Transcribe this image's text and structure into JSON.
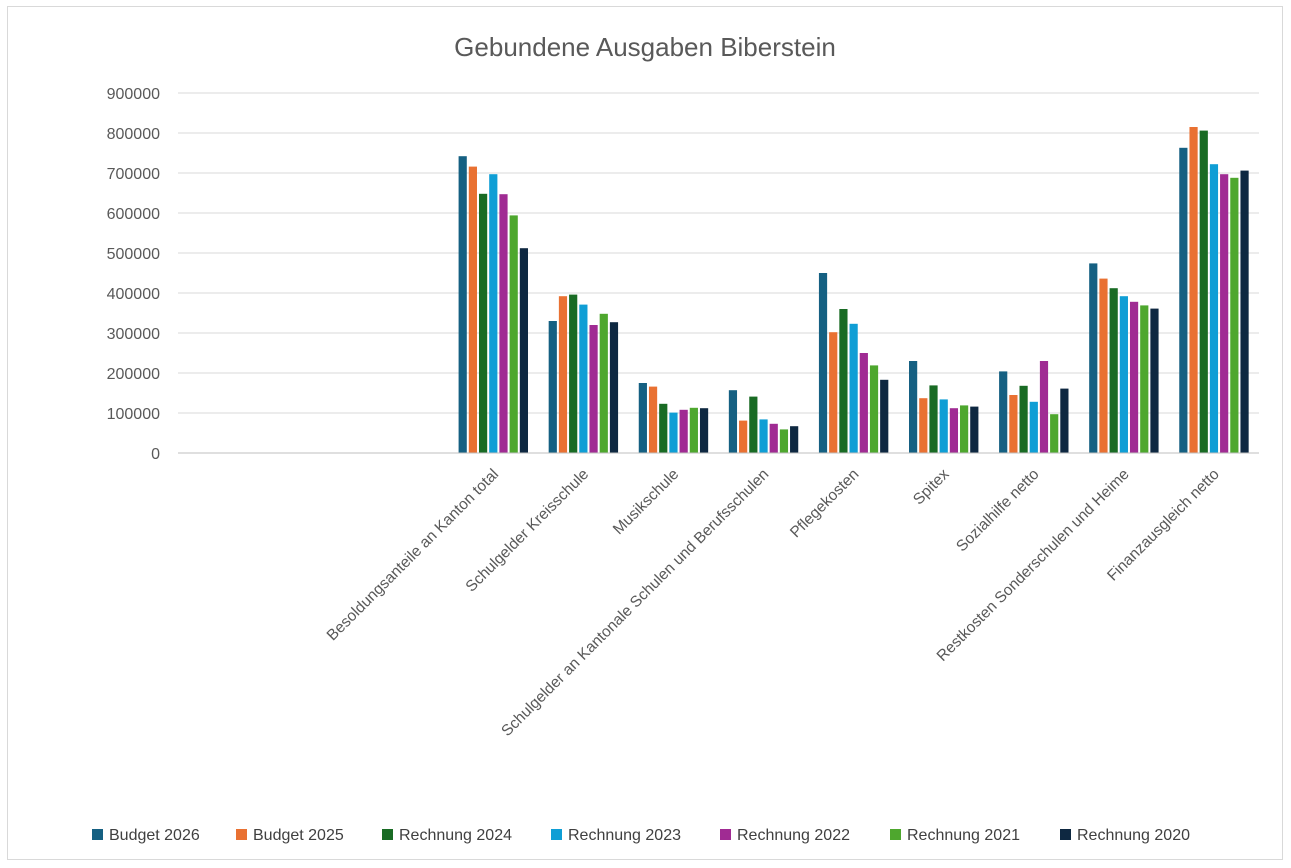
{
  "chart_data": {
    "type": "bar",
    "title": "Gebundene Ausgaben Biberstein",
    "xlabel": "",
    "ylabel": "",
    "ylim": [
      0,
      900000
    ],
    "yticks": [
      "0",
      "100000",
      "200000",
      "300000",
      "400000",
      "500000",
      "600000",
      "700000",
      "800000",
      "900000"
    ],
    "grid": true,
    "legend_position": "bottom",
    "categories": [
      "",
      "",
      "",
      "Besoldungsanteile an Kanton total",
      "Schulgelder Kreisschule",
      "Musikschule",
      "Schulgelder an Kantonale Schulen und Berufsschulen",
      "Pflegekosten",
      "Spitex",
      "Sozialhilfe netto",
      "Restkosten Sonderschulen und Heime",
      "Finanzausgleich netto"
    ],
    "series": [
      {
        "name": "Budget 2026",
        "color": "#156082",
        "values": [
          null,
          null,
          null,
          742000,
          330000,
          175000,
          157000,
          450000,
          230000,
          204000,
          474000,
          763000
        ]
      },
      {
        "name": "Budget 2025",
        "color": "#E97132",
        "values": [
          null,
          null,
          null,
          716000,
          392000,
          166000,
          81000,
          302000,
          137000,
          145000,
          436000,
          815000
        ]
      },
      {
        "name": "Rechnung 2024",
        "color": "#196B24",
        "values": [
          null,
          null,
          null,
          648000,
          396000,
          123000,
          141000,
          360000,
          169000,
          168000,
          412000,
          806000
        ]
      },
      {
        "name": "Rechnung 2023",
        "color": "#0F9ED5",
        "values": [
          null,
          null,
          null,
          697000,
          371000,
          101000,
          84000,
          323000,
          134000,
          128000,
          392000,
          722000
        ]
      },
      {
        "name": "Rechnung 2022",
        "color": "#A02B93",
        "values": [
          null,
          null,
          null,
          647000,
          320000,
          108000,
          73000,
          250000,
          112000,
          230000,
          378000,
          697000
        ]
      },
      {
        "name": "Rechnung 2021",
        "color": "#4EA72E",
        "values": [
          null,
          null,
          null,
          594000,
          348000,
          113000,
          59000,
          219000,
          119000,
          97000,
          369000,
          688000
        ]
      },
      {
        "name": "Rechnung 2020",
        "color": "#0E2841",
        "values": [
          null,
          null,
          null,
          512000,
          327000,
          112000,
          67000,
          183000,
          116000,
          161000,
          361000,
          706000
        ]
      }
    ]
  }
}
